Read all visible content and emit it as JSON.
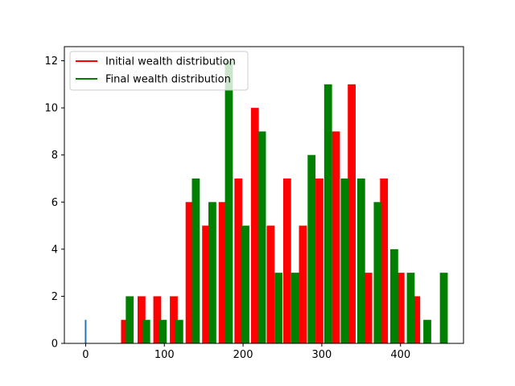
{
  "chart_data": {
    "type": "bar",
    "xlim": [
      -27,
      480
    ],
    "ylim": [
      0,
      12.6
    ],
    "x_ticks": [
      0,
      100,
      200,
      300,
      400
    ],
    "y_ticks": [
      0,
      2,
      4,
      6,
      8,
      10,
      12
    ],
    "grid": false,
    "legend_placement": "top-left",
    "bar_width": 10,
    "series": [
      {
        "name": "Initial wealth distribution",
        "color": "#ff0000",
        "x": [
          50,
          71,
          91,
          112,
          132,
          153,
          174,
          194,
          215,
          235,
          256,
          276,
          297,
          318,
          338,
          359,
          379,
          400,
          420
        ],
        "values": [
          1,
          2,
          2,
          2,
          6,
          5,
          6,
          7,
          10,
          5,
          7,
          5,
          7,
          9,
          11,
          3,
          7,
          3,
          2
        ]
      },
      {
        "name": "Final wealth distribution",
        "color": "#008000",
        "x": [
          56,
          77,
          98,
          119,
          140,
          161,
          182,
          203,
          224,
          245,
          266,
          287,
          308,
          329,
          350,
          371,
          392,
          413,
          434,
          455
        ],
        "values": [
          2,
          1,
          1,
          1,
          7,
          6,
          12,
          5,
          9,
          3,
          3,
          8,
          11,
          7,
          7,
          6,
          4,
          3,
          1,
          3
        ]
      }
    ],
    "extra_line": {
      "color": "#1f77b4",
      "points": [
        [
          0,
          0
        ],
        [
          0,
          1
        ]
      ]
    }
  }
}
